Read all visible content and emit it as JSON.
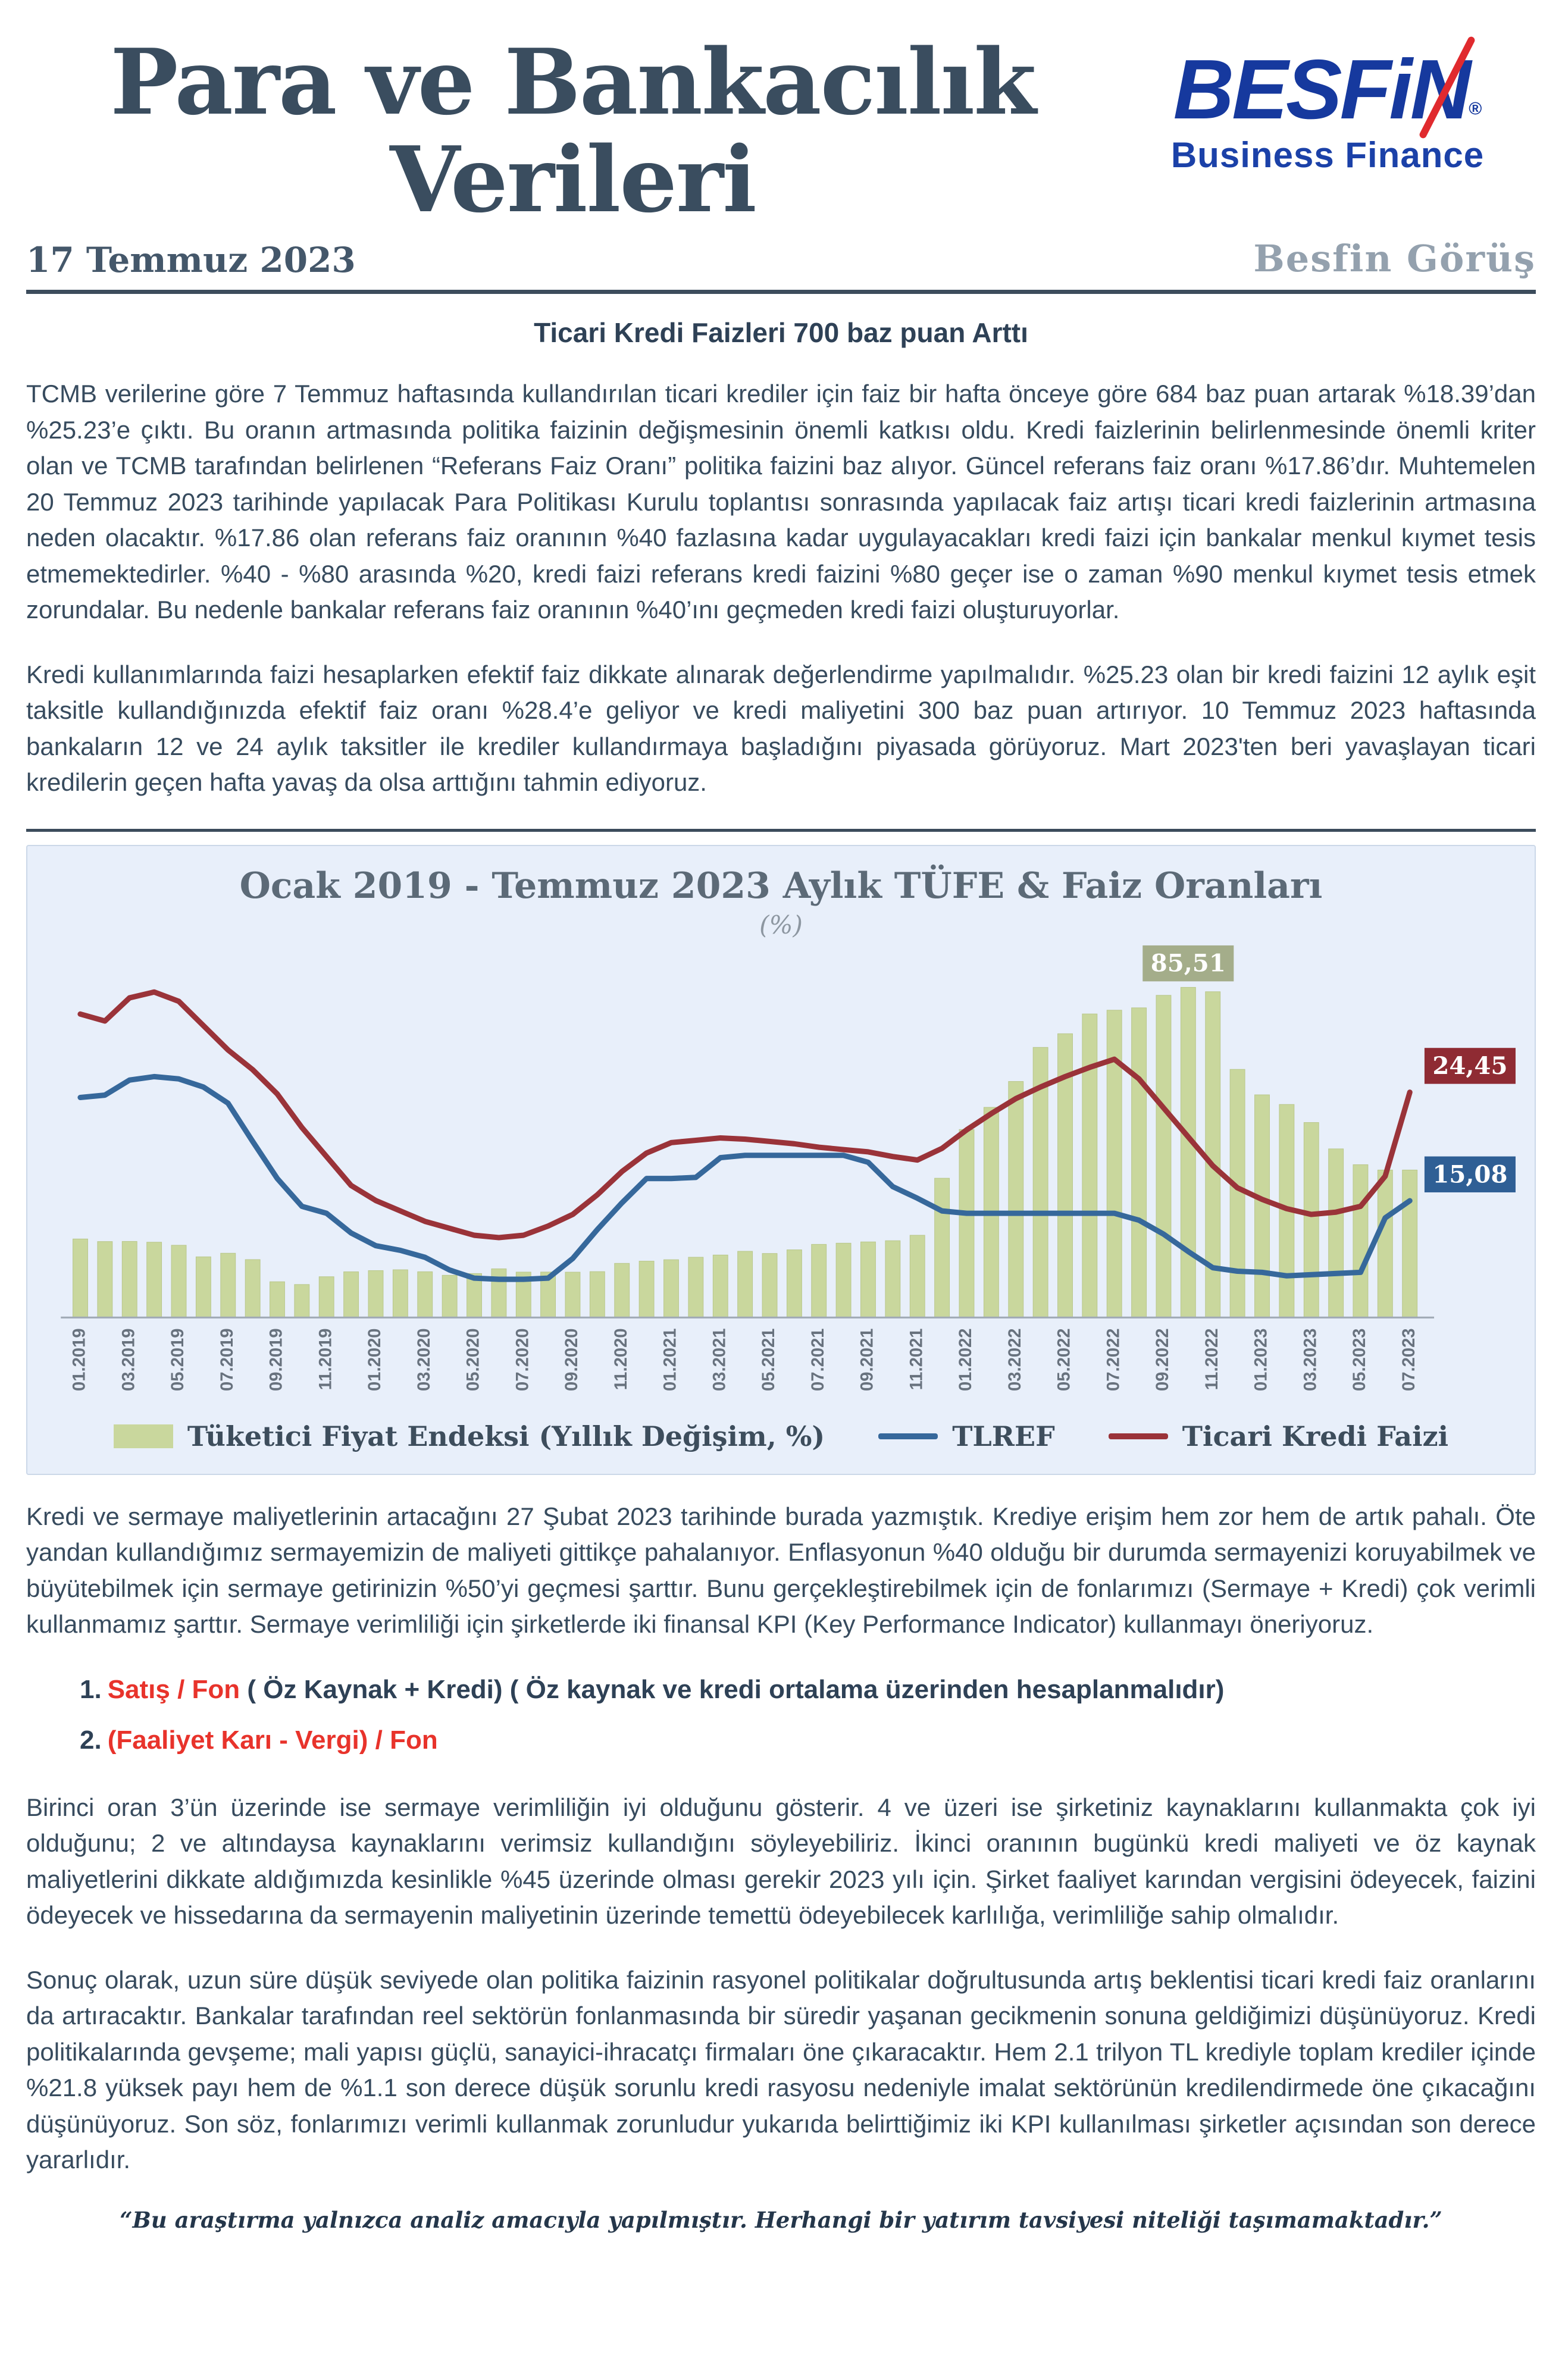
{
  "header": {
    "title_line1": "Para ve Bankacılık",
    "title_line2": "Verileri",
    "date": "17 Temmuz 2023",
    "brand_view": "Besfin Görüş",
    "logo": {
      "name": "BESFiN",
      "registered": "®",
      "tagline": "Business Finance"
    }
  },
  "colors": {
    "logo_blue": "#16399e",
    "logo_red": "#e02a2e",
    "accent_red": "#e8332b"
  },
  "article": {
    "heading": "Ticari Kredi Faizleri 700 baz puan Arttı",
    "paragraph1": "TCMB verilerine göre 7 Temmuz haftasında kullandırılan ticari krediler için faiz bir hafta önceye göre 684 baz puan artarak %18.39’dan %25.23’e çıktı. Bu oranın artmasında politika faizinin değişmesinin önemli katkısı oldu. Kredi faizlerinin belirlenmesinde önemli kriter olan ve TCMB tarafından belirlenen “Referans Faiz Oranı” politika faizini baz alıyor. Güncel referans faiz oranı %17.86’dır. Muhtemelen 20 Temmuz 2023 tarihinde yapılacak Para Politikası Kurulu toplantısı sonrasında yapılacak faiz artışı ticari kredi faizlerinin artmasına neden olacaktır. %17.86 olan referans faiz oranının %40 fazlasına kadar uygulayacakları kredi faizi için bankalar menkul kıymet tesis etmemektedirler. %40 - %80 arasında %20, kredi faizi referans kredi faizini %80 geçer ise o zaman %90 menkul kıymet tesis etmek zorundalar. Bu nedenle bankalar referans faiz oranının %40’ını geçmeden kredi faizi oluşturuyorlar.",
    "paragraph2": "Kredi kullanımlarında faizi hesaplarken efektif faiz dikkate alınarak değerlendirme yapılmalıdır. %25.23 olan bir kredi faizini 12 aylık eşit taksitle kullandığınızda efektif faiz oranı %28.4’e geliyor ve kredi maliyetini 300 baz puan artırıyor. 10 Temmuz 2023 haftasında bankaların 12 ve 24 aylık taksitler ile krediler kullandırmaya başladığını piyasada görüyoruz. Mart 2023'ten beri yavaşlayan ticari kredilerin geçen hafta yavaş da olsa arttığını tahmin ediyoruz.",
    "paragraph3": "Kredi ve sermaye maliyetlerinin artacağını 27 Şubat 2023 tarihinde burada yazmıştık. Krediye erişim hem zor hem de artık pahalı. Öte yandan kullandığımız sermayemizin de maliyeti gittikçe pahalanıyor. Enflasyonun %40 olduğu bir durumda sermayenizi koruyabilmek ve büyütebilmek için sermaye getirinizin %50’yi geçmesi şarttır. Bunu gerçekleştirebilmek için de fonlarımızı (Sermaye + Kredi) çok verimli kullanmamız şarttır.  Sermaye verimliliği için şirketlerde iki finansal KPI (Key Performance Indicator) kullanmayı öneriyoruz.",
    "list": {
      "item1_number": "1.",
      "item1_red": "Satış / Fon",
      "item1_rest": " ( Öz Kaynak + Kredi) ( Öz kaynak ve kredi ortalama üzerinden hesaplanmalıdır)",
      "item2_number": "2.",
      "item2_red": "(Faaliyet Karı - Vergi) / Fon"
    },
    "paragraph4": "Birinci oran 3’ün üzerinde ise sermaye verimliliğin iyi olduğunu gösterir. 4 ve üzeri ise şirketiniz kaynaklarını kullanmakta çok iyi olduğunu; 2 ve altındaysa kaynaklarını verimsiz kullandığını söyleyebiliriz. İkinci oranının bugünkü kredi maliyeti ve öz kaynak maliyetlerini dikkate aldığımızda kesinlikle %45 üzerinde olması gerekir 2023 yılı için. Şirket faaliyet karından vergisini ödeyecek, faizini ödeyecek ve hissedarına da sermayenin maliyetinin üzerinde temettü ödeyebilecek karlılığa, verimliliğe sahip olmalıdır.",
    "paragraph5": "Sonuç olarak, uzun süre düşük seviyede olan politika faizinin rasyonel politikalar doğrultusunda artış beklentisi ticari kredi faiz oranlarını da artıracaktır. Bankalar tarafından reel sektörün fonlanmasında bir süredir yaşanan gecikmenin sonuna geldiğimizi düşünüyoruz. Kredi politikalarında gevşeme; mali yapısı güçlü, sanayici-ihracatçı firmaları öne çıkaracaktır. Hem 2.1 trilyon TL krediyle toplam krediler içinde %21.8 yüksek payı hem de %1.1 son derece düşük sorunlu kredi rasyosu nedeniyle imalat sektörünün kredilendirmede öne çıkacağını düşünüyoruz. Son söz, fonlarımızı verimli kullanmak zorunludur yukarıda belirttiğimiz iki KPI kullanılması şirketler açısından son derece yararlıdır."
  },
  "footer": {
    "disclaimer": "“Bu araştırma yalnızca analiz amacıyla yapılmıştır. Herhangi bir yatırım tavsiyesi niteliği taşımamaktadır.”"
  },
  "chart_data": {
    "type": "combo",
    "title": "Ocak 2019 - Temmuz 2023 Aylık TÜFE & Faiz Oranları",
    "subtitle": "(%)",
    "x": [
      "01.2019",
      "02.2019",
      "03.2019",
      "04.2019",
      "05.2019",
      "06.2019",
      "07.2019",
      "08.2019",
      "09.2019",
      "10.2019",
      "11.2019",
      "12.2019",
      "01.2020",
      "02.2020",
      "03.2020",
      "04.2020",
      "05.2020",
      "06.2020",
      "07.2020",
      "08.2020",
      "09.2020",
      "10.2020",
      "11.2020",
      "12.2020",
      "01.2021",
      "02.2021",
      "03.2021",
      "04.2021",
      "05.2021",
      "06.2021",
      "07.2021",
      "08.2021",
      "09.2021",
      "10.2021",
      "11.2021",
      "12.2021",
      "01.2022",
      "02.2022",
      "03.2022",
      "04.2022",
      "05.2022",
      "06.2022",
      "07.2022",
      "08.2022",
      "09.2022",
      "10.2022",
      "11.2022",
      "12.2022",
      "01.2023",
      "02.2023",
      "03.2023",
      "04.2023",
      "05.2023",
      "06.2023",
      "07.2023"
    ],
    "x_tick_step": 2,
    "ylim": [
      0,
      90
    ],
    "y2lim": [
      5,
      35
    ],
    "grid": false,
    "legend_position": "bottom",
    "series": [
      {
        "name": "Tüketici Fiyat Endeksi (Yıllık Değişim, %)",
        "kind": "bar",
        "axis": "left",
        "color": "#c9d79d",
        "values": [
          20.35,
          19.67,
          19.71,
          19.5,
          18.71,
          15.72,
          16.65,
          15.01,
          9.26,
          8.55,
          10.56,
          11.84,
          12.15,
          12.37,
          11.86,
          10.94,
          11.39,
          12.62,
          11.76,
          11.77,
          11.75,
          11.89,
          14.03,
          14.6,
          14.97,
          15.61,
          16.19,
          17.14,
          16.59,
          17.53,
          18.95,
          19.25,
          19.58,
          19.89,
          21.31,
          36.08,
          48.69,
          54.44,
          61.14,
          69.97,
          73.5,
          78.62,
          79.6,
          80.21,
          83.45,
          85.51,
          84.39,
          64.27,
          57.68,
          55.18,
          50.51,
          43.68,
          39.59,
          38.21,
          38.21
        ]
      },
      {
        "name": "TLREF",
        "kind": "line",
        "axis": "right",
        "color": "#36689b",
        "values": [
          24.0,
          24.2,
          25.5,
          25.8,
          25.6,
          24.9,
          23.5,
          20.2,
          17.0,
          14.6,
          14.0,
          12.3,
          11.2,
          10.8,
          10.2,
          9.1,
          8.4,
          8.3,
          8.3,
          8.4,
          10.1,
          12.6,
          14.9,
          17.0,
          17.0,
          17.1,
          18.8,
          19.0,
          19.0,
          19.0,
          19.0,
          19.0,
          18.4,
          16.3,
          15.3,
          14.2,
          14.0,
          14.0,
          14.0,
          14.0,
          14.0,
          14.0,
          14.0,
          13.4,
          12.2,
          10.7,
          9.3,
          9.0,
          8.9,
          8.6,
          8.7,
          8.8,
          8.9,
          13.6,
          15.08
        ]
      },
      {
        "name": "Ticari Kredi Faizi",
        "kind": "line",
        "axis": "right",
        "color": "#9a3339",
        "values": [
          31.2,
          30.6,
          32.6,
          33.1,
          32.3,
          30.2,
          28.1,
          26.4,
          24.3,
          21.4,
          18.9,
          16.4,
          15.1,
          14.2,
          13.3,
          12.7,
          12.1,
          11.9,
          12.1,
          12.9,
          13.9,
          15.6,
          17.6,
          19.2,
          20.1,
          20.3,
          20.5,
          20.4,
          20.2,
          20.0,
          19.7,
          19.5,
          19.3,
          18.9,
          18.6,
          19.6,
          21.2,
          22.6,
          23.9,
          24.9,
          25.8,
          26.6,
          27.3,
          25.6,
          23.1,
          20.6,
          18.1,
          16.2,
          15.2,
          14.4,
          13.9,
          14.1,
          14.6,
          17.2,
          24.45
        ]
      }
    ],
    "annotations": [
      {
        "text": "85,51",
        "series": 0,
        "x": "10.2022",
        "bg": "#a4ad8a"
      },
      {
        "text": "24,45",
        "series": 2,
        "x": "07.2023",
        "bg": "#8f2b33"
      },
      {
        "text": "15,08",
        "series": 1,
        "x": "07.2023",
        "bg": "#2f5f95"
      }
    ]
  }
}
